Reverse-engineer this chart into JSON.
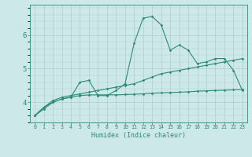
{
  "xlabel": "Humidex (Indice chaleur)",
  "x": [
    0,
    1,
    2,
    3,
    4,
    5,
    6,
    7,
    8,
    9,
    10,
    11,
    12,
    13,
    14,
    15,
    16,
    17,
    18,
    19,
    20,
    21,
    22,
    23
  ],
  "line1": [
    3.6,
    3.8,
    4.0,
    4.1,
    4.15,
    4.6,
    4.65,
    4.2,
    4.2,
    4.35,
    4.55,
    5.75,
    6.5,
    6.55,
    6.3,
    5.55,
    5.7,
    5.55,
    5.15,
    5.2,
    5.3,
    5.3,
    4.95,
    4.35
  ],
  "line2": [
    3.6,
    3.85,
    4.05,
    4.15,
    4.2,
    4.25,
    4.3,
    4.35,
    4.4,
    4.45,
    4.5,
    4.55,
    4.65,
    4.75,
    4.85,
    4.9,
    4.95,
    5.0,
    5.05,
    5.1,
    5.15,
    5.2,
    5.25,
    5.3
  ],
  "line3": [
    3.6,
    3.85,
    4.0,
    4.1,
    4.15,
    4.2,
    4.22,
    4.22,
    4.22,
    4.22,
    4.23,
    4.24,
    4.25,
    4.27,
    4.28,
    4.29,
    4.3,
    4.31,
    4.33,
    4.34,
    4.35,
    4.36,
    4.37,
    4.38
  ],
  "line_color": "#2e8b74",
  "bg_color": "#cde8e8",
  "grid_color": "#aecece",
  "ylim": [
    3.4,
    6.9
  ],
  "yticks": [
    4,
    5,
    6
  ],
  "xlim": [
    -0.5,
    23.5
  ],
  "figsize": [
    3.2,
    2.0
  ],
  "dpi": 100
}
